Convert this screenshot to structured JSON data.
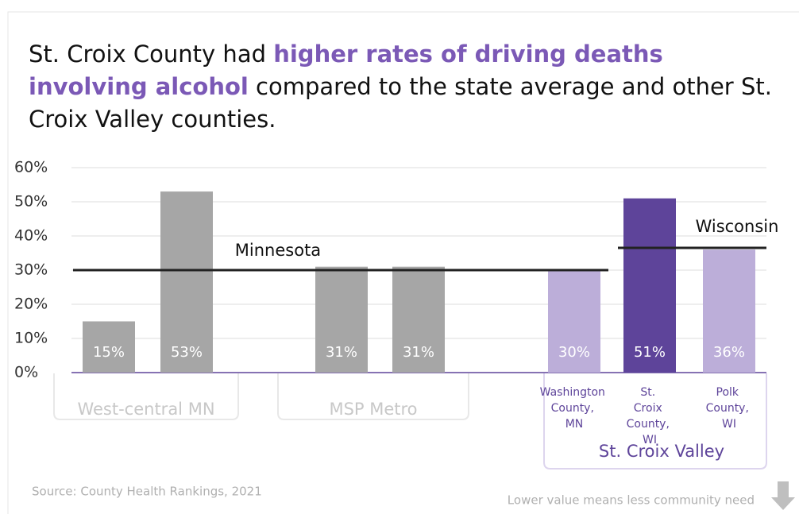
{
  "chart_data": {
    "type": "bar",
    "title_parts": [
      "St. Croix County had ",
      "higher rates of driving deaths involving alcohol",
      " compared to the state average and other St. Croix Valley counties."
    ],
    "categories": [
      null,
      null,
      null,
      null,
      "Washington County, MN",
      "St. Croix County, WI",
      "Polk County, WI"
    ],
    "values": [
      15,
      53,
      31,
      31,
      30,
      51,
      36
    ],
    "value_labels": [
      "15%",
      "53%",
      "31%",
      "31%",
      "30%",
      "51%",
      "36%"
    ],
    "colors": [
      "#a6a6a6",
      "#a6a6a6",
      "#a6a6a6",
      "#a6a6a6",
      "#bcaed9",
      "#5e449a",
      "#bcaed9"
    ],
    "groups": [
      "West-central MN",
      "MSP Metro",
      "St. Croix Valley"
    ],
    "reference_lines": [
      {
        "name": "Minnesota",
        "value": 30
      },
      {
        "name": "Wisconsin",
        "value": 36.5
      }
    ],
    "ylim": [
      0,
      60
    ],
    "yticks": [
      {
        "value": 0,
        "label": "0%"
      },
      {
        "value": 10,
        "label": "10%"
      },
      {
        "value": 20,
        "label": "20%"
      },
      {
        "value": 30,
        "label": "30%"
      },
      {
        "value": 40,
        "label": "40%"
      },
      {
        "value": 50,
        "label": "50%"
      },
      {
        "value": 60,
        "label": "60%"
      }
    ],
    "grid": true,
    "source": "Source: County Health Rankings, 2021",
    "note": "Lower value means less community need"
  }
}
